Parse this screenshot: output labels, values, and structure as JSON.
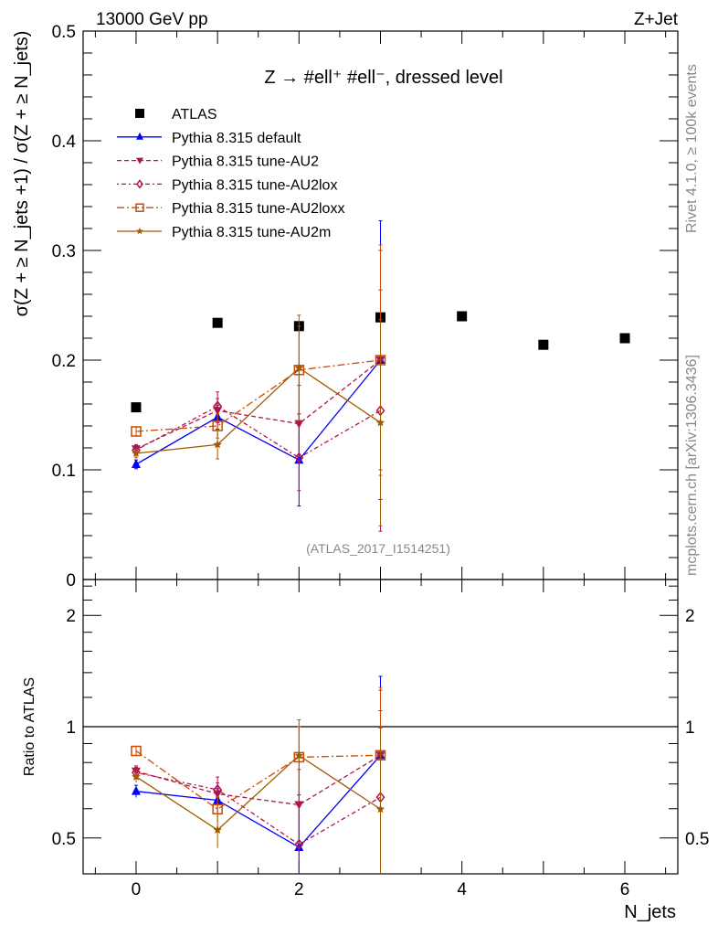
{
  "header": {
    "left": "13000 GeV pp",
    "right": "Z+Jet"
  },
  "side_texts": {
    "rivet": "Rivet 4.1.0, ≥ 100k events",
    "mcplots": "mcplots.cern.ch [arXiv:1306.3436]"
  },
  "watermark": "(ATLAS_2017_I1514251)",
  "chart_data": {
    "type": "scatter",
    "title": "Z → #ell⁺ #ell⁻, dressed level",
    "ylabel": "σ(Z + ≥ N_jets +1) / σ(Z + ≥ N_jets)",
    "ratio_ylabel": "Ratio to ATLAS",
    "xlabel": "N_jets",
    "xlim": [
      -0.65,
      6.65
    ],
    "ylim": [
      0,
      0.5
    ],
    "ratio_ylim": [
      0.4,
      2.5
    ],
    "ratio_scale": "log",
    "x_ticks": [
      "0",
      "2",
      "4",
      "6"
    ],
    "y_ticks": [
      "0",
      "0.1",
      "0.2",
      "0.3",
      "0.4",
      "0.5"
    ],
    "ratio_ticks": [
      "0.5",
      "1",
      "2"
    ],
    "legend_position": "top-left",
    "reference": {
      "name": "ATLAS",
      "x": [
        0,
        1,
        2,
        3,
        4,
        5,
        6
      ],
      "y": [
        0.157,
        0.234,
        0.231,
        0.239,
        0.24,
        0.214,
        0.22
      ],
      "color": "#000000"
    },
    "series": [
      {
        "name": "Pythia 8.315 default",
        "color": "#0000ff",
        "dash": "",
        "marker": "triangle-up",
        "x": [
          0,
          1,
          2,
          3
        ],
        "y": [
          0.105,
          0.148,
          0.109,
          0.2
        ],
        "err": [
          0.004,
          0.011,
          0.042,
          0.127
        ]
      },
      {
        "name": "Pythia 8.315 tune-AU2",
        "color": "#b0154a",
        "dash": "5,3",
        "marker": "triangle-down",
        "x": [
          0,
          1,
          2,
          3
        ],
        "y": [
          0.119,
          0.154,
          0.142,
          0.2
        ],
        "err": [
          0.004,
          0.011,
          0.035,
          0.1
        ]
      },
      {
        "name": "Pythia 8.315 tune-AU2lox",
        "color": "#b0154a",
        "dash": "2,3,5,3",
        "marker": "diamond",
        "x": [
          0,
          1,
          2,
          3
        ],
        "y": [
          0.118,
          0.158,
          0.111,
          0.154
        ],
        "err": [
          0.004,
          0.013,
          0.03,
          0.11
        ]
      },
      {
        "name": "Pythia 8.315 tune-AU2loxx",
        "color": "#cc4a00",
        "dash": "8,3,2,3",
        "marker": "square-open",
        "x": [
          0,
          1,
          2,
          3
        ],
        "y": [
          0.135,
          0.14,
          0.191,
          0.2
        ],
        "err": [
          0.004,
          0.011,
          0.04,
          0.105
        ]
      },
      {
        "name": "Pythia 8.315 tune-AU2m",
        "color": "#a05a00",
        "dash": "",
        "marker": "star",
        "x": [
          0,
          1,
          2,
          3
        ],
        "y": [
          0.115,
          0.123,
          0.193,
          0.143
        ],
        "err": [
          0.004,
          0.013,
          0.048,
          0.094
        ]
      }
    ]
  }
}
